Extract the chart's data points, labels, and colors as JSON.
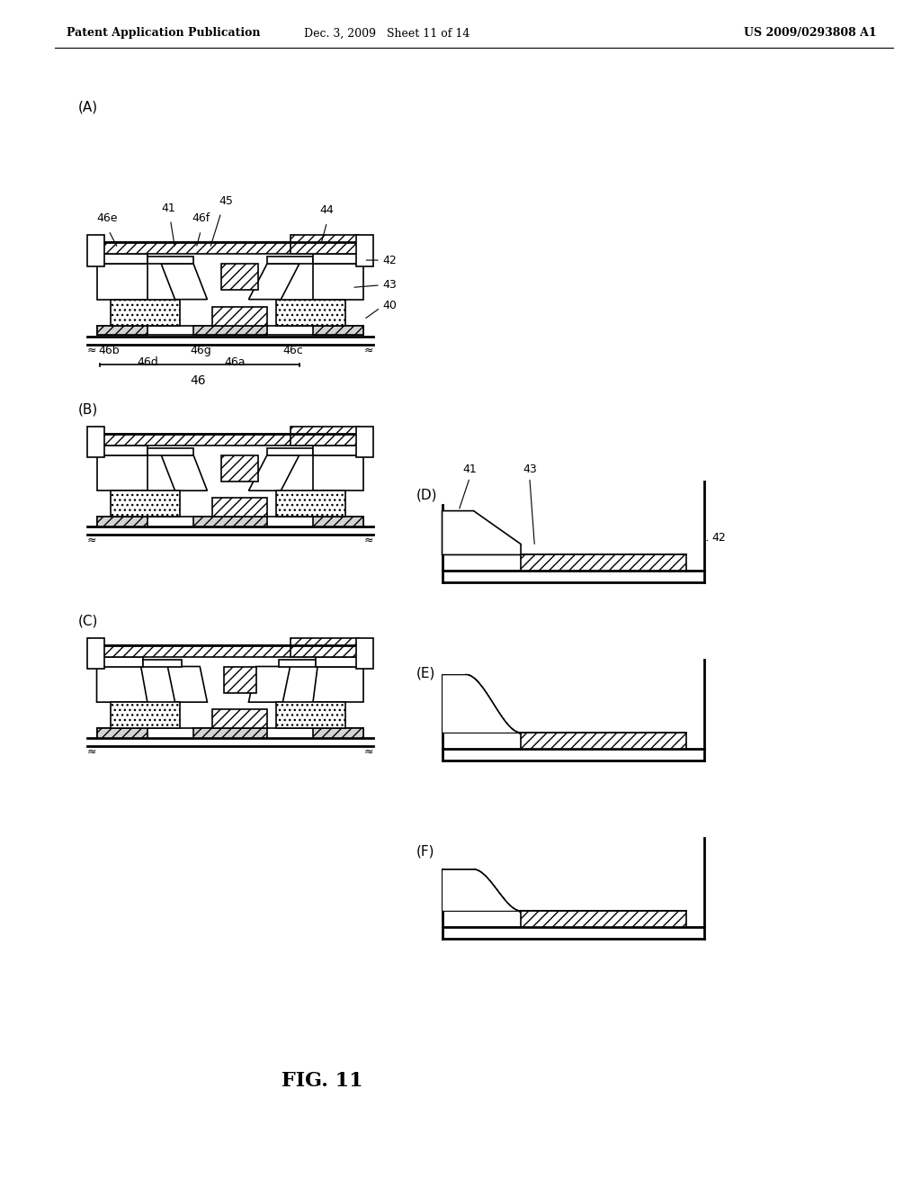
{
  "bg_color": "#ffffff",
  "header_left": "Patent Application Publication",
  "header_mid": "Dec. 3, 2009   Sheet 11 of 14",
  "header_right": "US 2009/0293808 A1",
  "figure_label": "FIG. 11"
}
